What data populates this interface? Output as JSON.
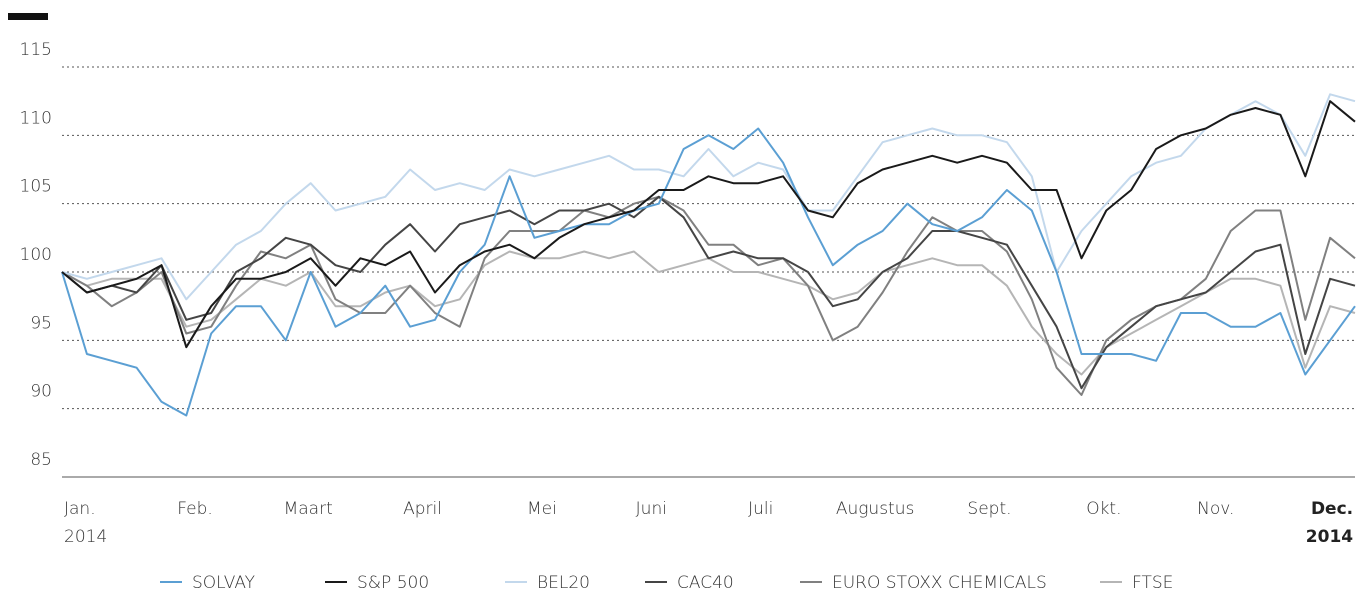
{
  "chart_data": {
    "type": "line",
    "x": [
      0,
      1,
      2,
      3,
      4,
      5,
      6,
      7,
      8,
      9,
      10,
      11,
      12,
      13,
      14,
      15,
      16,
      17,
      18,
      19,
      20,
      21,
      22,
      23,
      24,
      25,
      26,
      27,
      28,
      29,
      30,
      31,
      32,
      33,
      34,
      35,
      36,
      37,
      38,
      39,
      40,
      41,
      42,
      43,
      44,
      45,
      46,
      47,
      48,
      49,
      50,
      51,
      52
    ],
    "xlim": [
      0,
      52
    ],
    "xticks": [
      {
        "value": 0,
        "label": "Jan. 2014"
      },
      {
        "value": 5.35,
        "label": "Feb."
      },
      {
        "value": 9.9,
        "label": "Maart"
      },
      {
        "value": 14.5,
        "label": "April"
      },
      {
        "value": 19.3,
        "label": "Mei"
      },
      {
        "value": 23.7,
        "label": "Juni"
      },
      {
        "value": 28.1,
        "label": "Juli"
      },
      {
        "value": 32.7,
        "label": "Augustus"
      },
      {
        "value": 37.3,
        "label": "Sept."
      },
      {
        "value": 41.9,
        "label": "Okt."
      },
      {
        "value": 46.4,
        "label": "Nov."
      },
      {
        "value": 51,
        "label": "Dec. 2014"
      }
    ],
    "ylim": [
      85,
      115
    ],
    "yticks": [
      85,
      90,
      95,
      100,
      105,
      110,
      115
    ],
    "grid": true,
    "legend": "bottom",
    "series": [
      {
        "name": "SOLVAY",
        "color": "#5b9fd3",
        "values": [
          100,
          94,
          93.5,
          93,
          90.5,
          89.5,
          95.5,
          97.5,
          97.5,
          95,
          100,
          96,
          97,
          99,
          96,
          96.5,
          100,
          102,
          107,
          102.5,
          103,
          103.5,
          103.5,
          104.5,
          105,
          109,
          110,
          109,
          110.5,
          108,
          104,
          100.5,
          102,
          103,
          105,
          103.5,
          103,
          104,
          106,
          104.5,
          100,
          94,
          94,
          94,
          93.5,
          97,
          97,
          96,
          96,
          97,
          92.5,
          95,
          97.5
        ]
      },
      {
        "name": "S&P 500",
        "color": "#1a1a1a",
        "values": [
          100,
          98.5,
          99,
          99.5,
          100.5,
          94.5,
          97.5,
          99.5,
          99.5,
          100,
          101,
          99,
          101,
          100.5,
          101.5,
          98.5,
          100.5,
          101.5,
          102,
          101,
          102.5,
          103.5,
          104,
          104.5,
          106,
          106,
          107,
          106.5,
          106.5,
          107,
          104.5,
          104,
          106.5,
          107.5,
          108,
          108.5,
          108,
          108.5,
          108,
          106,
          106,
          101,
          104.5,
          106,
          109,
          110,
          110.5,
          111.5,
          112,
          111.5,
          107,
          112.5,
          111
        ]
      },
      {
        "name": "BEL20",
        "color": "#c3d8ec",
        "values": [
          100,
          99.5,
          100,
          100.5,
          101,
          98,
          100,
          102,
          103,
          105,
          106.5,
          104.5,
          105,
          105.5,
          107.5,
          106,
          106.5,
          106,
          107.5,
          107,
          107.5,
          108,
          108.5,
          107.5,
          107.5,
          107,
          109,
          107,
          108,
          107.5,
          104.5,
          104.5,
          107,
          109.5,
          110,
          110.5,
          110,
          110,
          109.5,
          107,
          100,
          103,
          105,
          107,
          108,
          108.5,
          110.5,
          111.5,
          112.5,
          111.5,
          108.5,
          113,
          112.5
        ]
      },
      {
        "name": "CAC40",
        "color": "#454545",
        "values": [
          100,
          98.5,
          99,
          98.5,
          100.5,
          96.5,
          97,
          100,
          101,
          102.5,
          102,
          100.5,
          100,
          102,
          103.5,
          101.5,
          103.5,
          104,
          104.5,
          103.5,
          104.5,
          104.5,
          105,
          104,
          105.5,
          104,
          101,
          101.5,
          101,
          101,
          100,
          97.5,
          98,
          100,
          101,
          103,
          103,
          102.5,
          102,
          99,
          96,
          91.5,
          94.5,
          96,
          97.5,
          98,
          98.5,
          100,
          101.5,
          102,
          94,
          99.5,
          99
        ]
      },
      {
        "name": "EURO STOXX CHEMICALS",
        "color": "#808080",
        "values": [
          100,
          99,
          97.5,
          98.5,
          100,
          95.5,
          96,
          99,
          101.5,
          101,
          102,
          98,
          97,
          97,
          99,
          97,
          96,
          101,
          103,
          103,
          103,
          104.5,
          104,
          105,
          105.5,
          104.5,
          102,
          102,
          100.5,
          101,
          99,
          95,
          96,
          98.5,
          101.5,
          104,
          103,
          103,
          101.5,
          98,
          93,
          91,
          95,
          96.5,
          97.5,
          98,
          99.5,
          103,
          104.5,
          104.5,
          96.5,
          102.5,
          101
        ]
      },
      {
        "name": "FTSE",
        "color": "#b5b5b5",
        "values": [
          100,
          99,
          99.5,
          99.5,
          99.5,
          96,
          96.5,
          98,
          99.5,
          99,
          100,
          97.5,
          97.5,
          98.5,
          99,
          97.5,
          98,
          100.5,
          101.5,
          101,
          101,
          101.5,
          101,
          101.5,
          100,
          100.5,
          101,
          100,
          100,
          99.5,
          99,
          98,
          98.5,
          100,
          100.5,
          101,
          100.5,
          100.5,
          99,
          96,
          94,
          92.5,
          94.5,
          95.5,
          96.5,
          97.5,
          98.5,
          99.5,
          99.5,
          99,
          93,
          97.5,
          97
        ]
      }
    ]
  }
}
